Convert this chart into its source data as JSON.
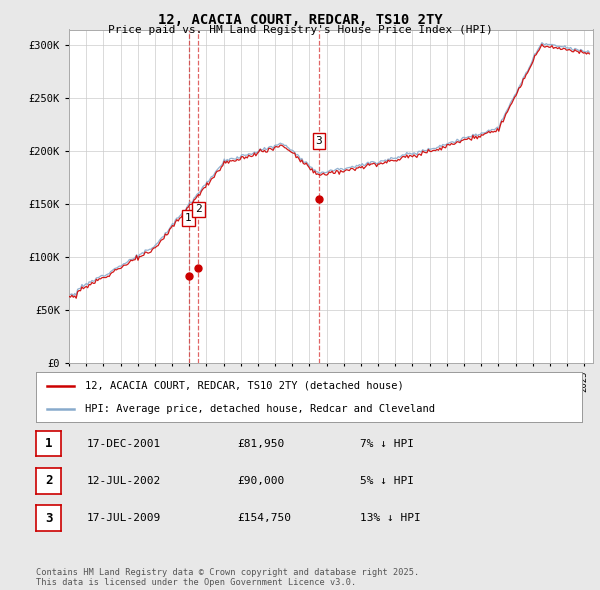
{
  "title": "12, ACACIA COURT, REDCAR, TS10 2TY",
  "subtitle": "Price paid vs. HM Land Registry's House Price Index (HPI)",
  "ylabel_ticks": [
    "£0",
    "£50K",
    "£100K",
    "£150K",
    "£200K",
    "£250K",
    "£300K"
  ],
  "ytick_values": [
    0,
    50000,
    100000,
    150000,
    200000,
    250000,
    300000
  ],
  "ylim": [
    0,
    315000
  ],
  "xlim_start": 1995.0,
  "xlim_end": 2025.5,
  "sale_dates": [
    2001.96,
    2002.54,
    2009.54
  ],
  "sale_prices": [
    81950,
    90000,
    154750
  ],
  "sale_labels": [
    "1",
    "2",
    "3"
  ],
  "legend_label_red": "12, ACACIA COURT, REDCAR, TS10 2TY (detached house)",
  "legend_label_blue": "HPI: Average price, detached house, Redcar and Cleveland",
  "table_data": [
    [
      "1",
      "17-DEC-2001",
      "£81,950",
      "7% ↓ HPI"
    ],
    [
      "2",
      "12-JUL-2002",
      "£90,000",
      "5% ↓ HPI"
    ],
    [
      "3",
      "17-JUL-2009",
      "£154,750",
      "13% ↓ HPI"
    ]
  ],
  "footer_text": "Contains HM Land Registry data © Crown copyright and database right 2025.\nThis data is licensed under the Open Government Licence v3.0.",
  "line_color_red": "#cc0000",
  "line_color_blue": "#88aacc",
  "vline_color": "#cc0000",
  "background_color": "#e8e8e8",
  "plot_bg_color": "#ffffff",
  "grid_color": "#cccccc"
}
